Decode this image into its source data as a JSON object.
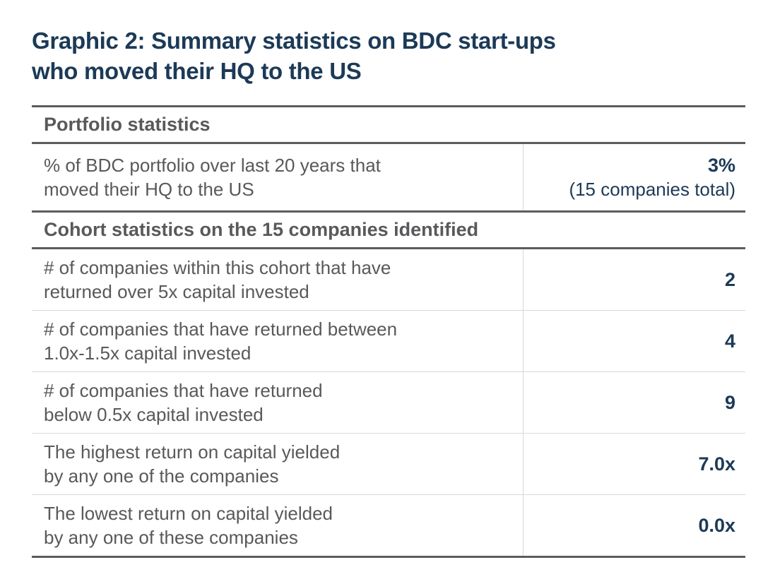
{
  "colors": {
    "navy": "#1c3a57",
    "gray_text": "#58595b",
    "thick_line": "#5b5c5e",
    "thin_line": "#d9d9d9",
    "bg": "#ffffff"
  },
  "title": {
    "line1": "Graphic 2: Summary statistics on BDC start-ups",
    "line2": "who moved their HQ to the US"
  },
  "table": {
    "section1": {
      "header": "Portfolio statistics",
      "row1": {
        "label1": "% of BDC portfolio over last 20 years that",
        "label2": "moved their HQ to the US",
        "value1": "3%",
        "value2": "(15 companies total)"
      }
    },
    "section2": {
      "header": "Cohort statistics on the 15 companies identified",
      "row1": {
        "label1": "# of companies within this cohort that have",
        "label2": "returned over 5x capital invested",
        "value": "2"
      },
      "row2": {
        "label1": "# of companies that have returned between",
        "label2": "1.0x-1.5x capital invested",
        "value": "4"
      },
      "row3": {
        "label1": "# of companies that have returned",
        "label2": "below 0.5x capital invested",
        "value": "9"
      },
      "row4": {
        "label1": "The highest return on capital yielded",
        "label2": "by any one of the companies",
        "value": "7.0x"
      },
      "row5": {
        "label1": "The lowest return on capital yielded",
        "label2": "by any one of these companies",
        "value": "0.0x"
      }
    }
  },
  "chart_data": {
    "type": "table",
    "title": "Graphic 2: Summary statistics on BDC start-ups who moved their HQ to the US",
    "sections": [
      {
        "header": "Portfolio statistics",
        "rows": [
          {
            "label": "% of BDC portfolio over last 20 years that moved their HQ to the US",
            "value": "3% (15 companies total)"
          }
        ]
      },
      {
        "header": "Cohort statistics on the 15 companies identified",
        "rows": [
          {
            "label": "# of companies within this cohort that have returned over 5x capital invested",
            "value": 2
          },
          {
            "label": "# of companies that have returned between 1.0x-1.5x capital invested",
            "value": 4
          },
          {
            "label": "# of companies that have returned below 0.5x capital invested",
            "value": 9
          },
          {
            "label": "The highest return on capital yielded by any one of the companies",
            "value": "7.0x"
          },
          {
            "label": "The lowest return on capital yielded by any one of these companies",
            "value": "0.0x"
          }
        ]
      }
    ]
  }
}
